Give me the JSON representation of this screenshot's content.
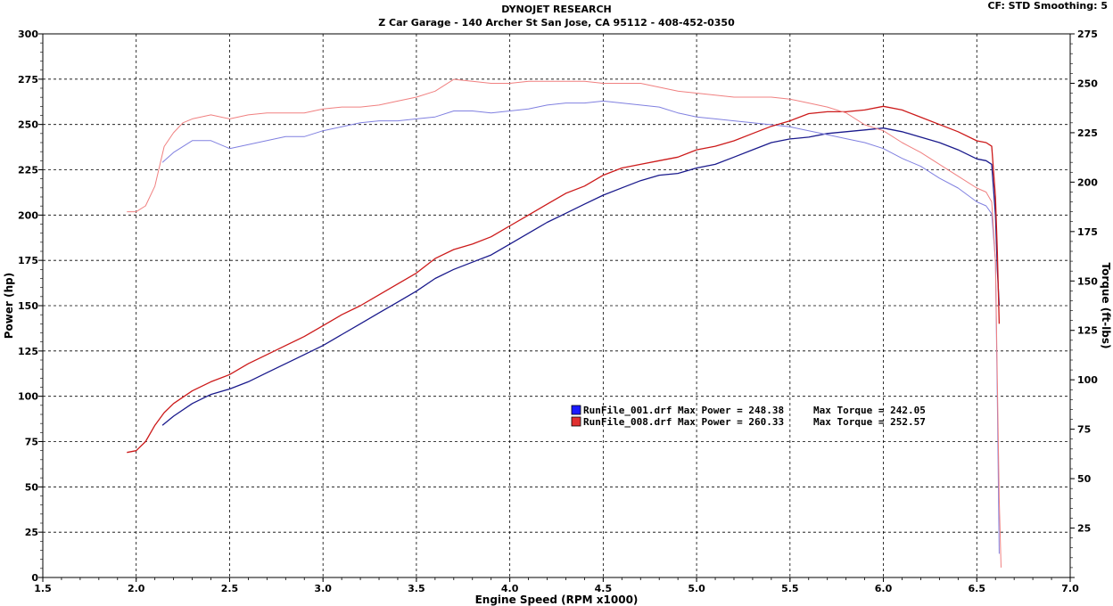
{
  "header": {
    "title": "DYNOJET RESEARCH",
    "subtitle": "Z Car Garage - 140 Archer St San Jose, CA 95112 - 408-452-0350",
    "settings": "CF: STD  Smoothing: 5"
  },
  "chart_data": {
    "type": "line",
    "xlabel": "Engine Speed (RPM x1000)",
    "ylabel_left": "Power (hp)",
    "ylabel_right": "Torque (ft-lbs)",
    "xlim": [
      1.5,
      7.0
    ],
    "ylim_left": [
      0,
      300
    ],
    "ylim_right": [
      0,
      275
    ],
    "xticks": [
      "1.5",
      "2.0",
      "2.5",
      "3.0",
      "3.5",
      "4.0",
      "4.5",
      "5.0",
      "5.5",
      "6.0",
      "6.5",
      "7.0"
    ],
    "yticks_left": [
      "0",
      "25",
      "50",
      "75",
      "100",
      "125",
      "150",
      "175",
      "200",
      "225",
      "250",
      "275",
      "300"
    ],
    "yticks_right": [
      "",
      "25",
      "50",
      "75",
      "100",
      "125",
      "150",
      "175",
      "200",
      "225",
      "250",
      "275"
    ],
    "grid": true,
    "legend_position": "center-right",
    "legend": [
      {
        "label": "RunFile_001.drf Max Power = 248.38",
        "torque_label": "Max Torque = 242.05",
        "color": "#1a1aff"
      },
      {
        "label": "RunFile_008.drf Max Power = 260.33",
        "torque_label": "Max Torque = 252.57",
        "color": "#e03030"
      }
    ],
    "series": [
      {
        "name": "RunFile_001.drf",
        "quantity": "power",
        "axis": "left",
        "color": "#1a1a8c",
        "width": 1.3,
        "x": [
          2.14,
          2.2,
          2.3,
          2.4,
          2.5,
          2.6,
          2.7,
          2.8,
          2.9,
          3.0,
          3.1,
          3.2,
          3.3,
          3.4,
          3.5,
          3.6,
          3.7,
          3.8,
          3.9,
          4.0,
          4.1,
          4.2,
          4.3,
          4.4,
          4.5,
          4.6,
          4.7,
          4.8,
          4.9,
          5.0,
          5.1,
          5.2,
          5.3,
          5.4,
          5.5,
          5.6,
          5.7,
          5.8,
          5.9,
          6.0,
          6.1,
          6.2,
          6.3,
          6.4,
          6.5,
          6.55,
          6.58,
          6.6,
          6.61,
          6.62
        ],
        "y": [
          84,
          89,
          96,
          101,
          104,
          108,
          113,
          118,
          123,
          128,
          134,
          140,
          146,
          152,
          158,
          165,
          170,
          174,
          178,
          184,
          190,
          196,
          201,
          206,
          211,
          215,
          219,
          222,
          223,
          226,
          228,
          232,
          236,
          240,
          242,
          243,
          245,
          246,
          247,
          248,
          246,
          243,
          240,
          236,
          231,
          230,
          228,
          200,
          170,
          150
        ]
      },
      {
        "name": "RunFile_001.drf",
        "quantity": "torque",
        "axis": "right",
        "color": "#8080e0",
        "width": 1.0,
        "x": [
          2.14,
          2.2,
          2.3,
          2.4,
          2.5,
          2.6,
          2.7,
          2.8,
          2.9,
          3.0,
          3.1,
          3.2,
          3.3,
          3.4,
          3.5,
          3.6,
          3.7,
          3.8,
          3.9,
          4.0,
          4.1,
          4.2,
          4.3,
          4.4,
          4.5,
          4.6,
          4.7,
          4.8,
          4.9,
          5.0,
          5.1,
          5.2,
          5.3,
          5.4,
          5.5,
          5.6,
          5.7,
          5.8,
          5.9,
          6.0,
          6.1,
          6.2,
          6.3,
          6.4,
          6.5,
          6.55,
          6.58,
          6.6,
          6.61,
          6.62
        ],
        "y": [
          210,
          215,
          221,
          221,
          217,
          219,
          221,
          223,
          223,
          226,
          228,
          230,
          231,
          231,
          232,
          233,
          236,
          236,
          235,
          236,
          237,
          239,
          240,
          240,
          241,
          240,
          239,
          238,
          235,
          233,
          232,
          231,
          230,
          229,
          228,
          226,
          224,
          222,
          220,
          217,
          212,
          208,
          202,
          197,
          190,
          188,
          184,
          160,
          90,
          12
        ]
      },
      {
        "name": "RunFile_008.drf",
        "quantity": "power",
        "axis": "left",
        "color": "#cc1a1a",
        "width": 1.3,
        "x": [
          1.95,
          2.0,
          2.05,
          2.1,
          2.15,
          2.2,
          2.3,
          2.4,
          2.5,
          2.6,
          2.7,
          2.8,
          2.9,
          3.0,
          3.1,
          3.2,
          3.3,
          3.4,
          3.5,
          3.6,
          3.7,
          3.8,
          3.9,
          4.0,
          4.1,
          4.2,
          4.3,
          4.4,
          4.5,
          4.6,
          4.7,
          4.8,
          4.9,
          5.0,
          5.1,
          5.2,
          5.3,
          5.4,
          5.5,
          5.6,
          5.7,
          5.8,
          5.9,
          6.0,
          6.1,
          6.2,
          6.3,
          6.4,
          6.5,
          6.55,
          6.58,
          6.6,
          6.61,
          6.62
        ],
        "y": [
          69,
          70,
          75,
          84,
          91,
          96,
          103,
          108,
          112,
          118,
          123,
          128,
          133,
          139,
          145,
          150,
          156,
          162,
          168,
          176,
          181,
          184,
          188,
          194,
          200,
          206,
          212,
          216,
          222,
          226,
          228,
          230,
          232,
          236,
          238,
          241,
          245,
          249,
          252,
          256,
          257,
          257,
          258,
          260,
          258,
          254,
          250,
          246,
          241,
          240,
          238,
          210,
          180,
          140
        ]
      },
      {
        "name": "RunFile_008.drf",
        "quantity": "torque",
        "axis": "right",
        "color": "#f08080",
        "width": 1.0,
        "x": [
          1.95,
          2.0,
          2.05,
          2.1,
          2.15,
          2.2,
          2.25,
          2.3,
          2.4,
          2.5,
          2.6,
          2.7,
          2.8,
          2.9,
          3.0,
          3.1,
          3.2,
          3.3,
          3.4,
          3.5,
          3.6,
          3.7,
          3.8,
          3.9,
          4.0,
          4.1,
          4.2,
          4.3,
          4.4,
          4.5,
          4.6,
          4.7,
          4.8,
          4.9,
          5.0,
          5.1,
          5.2,
          5.3,
          5.4,
          5.5,
          5.6,
          5.7,
          5.8,
          5.9,
          6.0,
          6.1,
          6.2,
          6.3,
          6.4,
          6.5,
          6.55,
          6.58,
          6.6,
          6.61,
          6.62,
          6.63
        ],
        "y": [
          185,
          185,
          188,
          198,
          218,
          225,
          230,
          232,
          234,
          232,
          234,
          235,
          235,
          235,
          237,
          238,
          238,
          239,
          241,
          243,
          246,
          252,
          251,
          250,
          250,
          251,
          251,
          251,
          251,
          250,
          250,
          250,
          248,
          246,
          245,
          244,
          243,
          243,
          243,
          242,
          240,
          238,
          235,
          229,
          226,
          220,
          215,
          209,
          203,
          197,
          195,
          190,
          160,
          100,
          40,
          5
        ]
      }
    ]
  }
}
